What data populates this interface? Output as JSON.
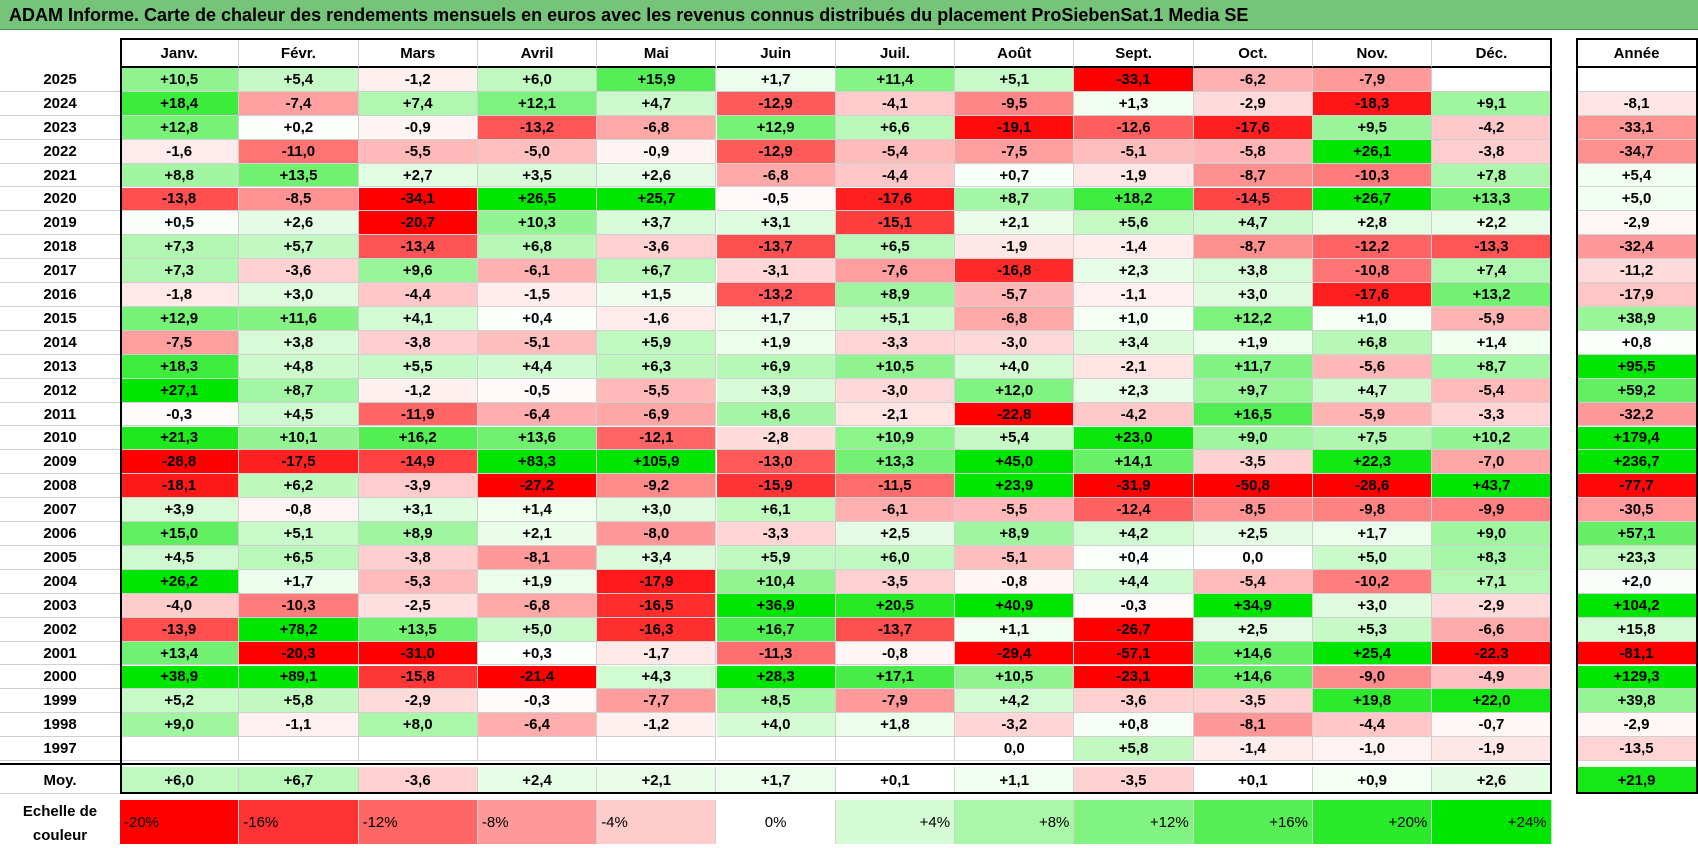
{
  "title": "ADAM Informe. Carte de chaleur des rendements mensuels en euros avec les revenus connus distribués du placement ProSiebenSat.1 Media SE",
  "chart_data": {
    "type": "heatmap",
    "title": "ADAM Informe. Carte de chaleur des rendements mensuels en euros avec les revenus connus distribués du placement ProSiebenSat.1 Media SE",
    "columns": [
      "Janv.",
      "Févr.",
      "Mars",
      "Avril",
      "Mai",
      "Juin",
      "Juil.",
      "Août",
      "Sept.",
      "Oct.",
      "Nov.",
      "Déc."
    ],
    "annual_header": "Année",
    "rows": [
      {
        "year": "2025",
        "months": [
          "+10,5",
          "+5,4",
          "-1,2",
          "+6,0",
          "+15,9",
          "+1,7",
          "+11,4",
          "+5,1",
          "-33,1",
          "-6,2",
          "-7,9",
          ""
        ],
        "annual": ""
      },
      {
        "year": "2024",
        "months": [
          "+18,4",
          "-7,4",
          "+7,4",
          "+12,1",
          "+4,7",
          "-12,9",
          "-4,1",
          "-9,5",
          "+1,3",
          "-2,9",
          "-18,3",
          "+9,1"
        ],
        "annual": "-8,1"
      },
      {
        "year": "2023",
        "months": [
          "+12,8",
          "+0,2",
          "-0,9",
          "-13,2",
          "-6,8",
          "+12,9",
          "+6,6",
          "-19,1",
          "-12,6",
          "-17,6",
          "+9,5",
          "-4,2"
        ],
        "annual": "-33,1"
      },
      {
        "year": "2022",
        "months": [
          "-1,6",
          "-11,0",
          "-5,5",
          "-5,0",
          "-0,9",
          "-12,9",
          "-5,4",
          "-7,5",
          "-5,1",
          "-5,8",
          "+26,1",
          "-3,8"
        ],
        "annual": "-34,7"
      },
      {
        "year": "2021",
        "months": [
          "+8,8",
          "+13,5",
          "+2,7",
          "+3,5",
          "+2,6",
          "-6,8",
          "-4,4",
          "+0,7",
          "-1,9",
          "-8,7",
          "-10,3",
          "+7,8"
        ],
        "annual": "+5,4"
      },
      {
        "year": "2020",
        "months": [
          "-13,8",
          "-8,5",
          "-34,1",
          "+26,5",
          "+25,7",
          "-0,5",
          "-17,6",
          "+8,7",
          "+18,2",
          "-14,5",
          "+26,7",
          "+13,3"
        ],
        "annual": "+5,0"
      },
      {
        "year": "2019",
        "months": [
          "+0,5",
          "+2,6",
          "-20,7",
          "+10,3",
          "+3,7",
          "+3,1",
          "-15,1",
          "+2,1",
          "+5,6",
          "+4,7",
          "+2,8",
          "+2,2"
        ],
        "annual": "-2,9"
      },
      {
        "year": "2018",
        "months": [
          "+7,3",
          "+5,7",
          "-13,4",
          "+6,8",
          "-3,6",
          "-13,7",
          "+6,5",
          "-1,9",
          "-1,4",
          "-8,7",
          "-12,2",
          "-13,3"
        ],
        "annual": "-32,4"
      },
      {
        "year": "2017",
        "months": [
          "+7,3",
          "-3,6",
          "+9,6",
          "-6,1",
          "+6,7",
          "-3,1",
          "-7,6",
          "-16,8",
          "+2,3",
          "+3,8",
          "-10,8",
          "+7,4"
        ],
        "annual": "-11,2"
      },
      {
        "year": "2016",
        "months": [
          "-1,8",
          "+3,0",
          "-4,4",
          "-1,5",
          "+1,5",
          "-13,2",
          "+8,9",
          "-5,7",
          "-1,1",
          "+3,0",
          "-17,6",
          "+13,2"
        ],
        "annual": "-17,9"
      },
      {
        "year": "2015",
        "months": [
          "+12,9",
          "+11,6",
          "+4,1",
          "+0,4",
          "-1,6",
          "+1,7",
          "+5,1",
          "-6,8",
          "+1,0",
          "+12,2",
          "+1,0",
          "-5,9"
        ],
        "annual": "+38,9"
      },
      {
        "year": "2014",
        "months": [
          "-7,5",
          "+3,8",
          "-3,8",
          "-5,1",
          "+5,9",
          "+1,9",
          "-3,3",
          "-3,0",
          "+3,4",
          "+1,9",
          "+6,8",
          "+1,4"
        ],
        "annual": "+0,8"
      },
      {
        "year": "2013",
        "months": [
          "+18,3",
          "+4,8",
          "+5,5",
          "+4,4",
          "+6,3",
          "+6,9",
          "+10,5",
          "+4,0",
          "-2,1",
          "+11,7",
          "-5,6",
          "+8,7"
        ],
        "annual": "+95,5"
      },
      {
        "year": "2012",
        "months": [
          "+27,1",
          "+8,7",
          "-1,2",
          "-0,5",
          "-5,5",
          "+3,9",
          "-3,0",
          "+12,0",
          "+2,3",
          "+9,7",
          "+4,7",
          "-5,4"
        ],
        "annual": "+59,2"
      },
      {
        "year": "2011",
        "months": [
          "-0,3",
          "+4,5",
          "-11,9",
          "-6,4",
          "-6,9",
          "+8,6",
          "-2,1",
          "-22,8",
          "-4,2",
          "+16,5",
          "-5,9",
          "-3,3"
        ],
        "annual": "-32,2"
      },
      {
        "year": "2010",
        "months": [
          "+21,3",
          "+10,1",
          "+16,2",
          "+13,6",
          "-12,1",
          "-2,8",
          "+10,9",
          "+5,4",
          "+23,0",
          "+9,0",
          "+7,5",
          "+10,2"
        ],
        "annual": "+179,4"
      },
      {
        "year": "2009",
        "months": [
          "-28,8",
          "-17,5",
          "-14,9",
          "+83,3",
          "+105,9",
          "-13,0",
          "+13,3",
          "+45,0",
          "+14,1",
          "-3,5",
          "+22,3",
          "-7,0"
        ],
        "annual": "+236,7"
      },
      {
        "year": "2008",
        "months": [
          "-18,1",
          "+6,2",
          "-3,9",
          "-27,2",
          "-9,2",
          "-15,9",
          "-11,5",
          "+23,9",
          "-31,9",
          "-50,8",
          "-28,6",
          "+43,7"
        ],
        "annual": "-77,7"
      },
      {
        "year": "2007",
        "months": [
          "+3,9",
          "-0,8",
          "+3,1",
          "+1,4",
          "+3,0",
          "+6,1",
          "-6,1",
          "-5,5",
          "-12,4",
          "-8,5",
          "-9,8",
          "-9,9"
        ],
        "annual": "-30,5"
      },
      {
        "year": "2006",
        "months": [
          "+15,0",
          "+5,1",
          "+8,9",
          "+2,1",
          "-8,0",
          "-3,3",
          "+2,5",
          "+8,9",
          "+4,2",
          "+2,5",
          "+1,7",
          "+9,0"
        ],
        "annual": "+57,1"
      },
      {
        "year": "2005",
        "months": [
          "+4,5",
          "+6,5",
          "-3,8",
          "-8,1",
          "+3,4",
          "+5,9",
          "+6,0",
          "-5,1",
          "+0,4",
          "0,0",
          "+5,0",
          "+8,3"
        ],
        "annual": "+23,3"
      },
      {
        "year": "2004",
        "months": [
          "+26,2",
          "+1,7",
          "-5,3",
          "+1,9",
          "-17,9",
          "+10,4",
          "-3,5",
          "-0,8",
          "+4,4",
          "-5,4",
          "-10,2",
          "+7,1"
        ],
        "annual": "+2,0"
      },
      {
        "year": "2003",
        "months": [
          "-4,0",
          "-10,3",
          "-2,5",
          "-6,8",
          "-16,5",
          "+36,9",
          "+20,5",
          "+40,9",
          "-0,3",
          "+34,9",
          "+3,0",
          "-2,9"
        ],
        "annual": "+104,2"
      },
      {
        "year": "2002",
        "months": [
          "-13,9",
          "+78,2",
          "+13,5",
          "+5,0",
          "-16,3",
          "+16,7",
          "-13,7",
          "+1,1",
          "-26,7",
          "+2,5",
          "+5,3",
          "-6,6"
        ],
        "annual": "+15,8"
      },
      {
        "year": "2001",
        "months": [
          "+13,4",
          "-20,3",
          "-31,0",
          "+0,3",
          "-1,7",
          "-11,3",
          "-0,8",
          "-29,4",
          "-57,1",
          "+14,6",
          "+25,4",
          "-22,3"
        ],
        "annual": "-81,1"
      },
      {
        "year": "2000",
        "months": [
          "+38,9",
          "+89,1",
          "-15,8",
          "-21,4",
          "+4,3",
          "+28,3",
          "+17,1",
          "+10,5",
          "-23,1",
          "+14,6",
          "-9,0",
          "-4,9"
        ],
        "annual": "+129,3"
      },
      {
        "year": "1999",
        "months": [
          "+5,2",
          "+5,8",
          "-2,9",
          "-0,3",
          "-7,7",
          "+8,5",
          "-7,9",
          "+4,2",
          "-3,6",
          "-3,5",
          "+19,8",
          "+22,0"
        ],
        "annual": "+39,8"
      },
      {
        "year": "1998",
        "months": [
          "+9,0",
          "-1,1",
          "+8,0",
          "-6,4",
          "-1,2",
          "+4,0",
          "+1,8",
          "-3,2",
          "+0,8",
          "-8,1",
          "-4,4",
          "-0,7"
        ],
        "annual": "-2,9"
      },
      {
        "year": "1997",
        "months": [
          "",
          "",
          "",
          "",
          "",
          "",
          "",
          "0,0",
          "+5,8",
          "-1,4",
          "-1,0",
          "-1,9"
        ],
        "annual": "-13,5"
      }
    ],
    "average": {
      "label": "Moy.",
      "months": [
        "+6,0",
        "+6,7",
        "-3,6",
        "+2,4",
        "+2,1",
        "+1,7",
        "+0,1",
        "+1,1",
        "-3,5",
        "+0,1",
        "+0,9",
        "+2,6"
      ],
      "annual": "+21,9"
    },
    "scale": {
      "label": "Echelle de couleur",
      "steps": [
        {
          "text": "-20%",
          "value": -20,
          "align": "left"
        },
        {
          "text": "-16%",
          "value": -16,
          "align": "left"
        },
        {
          "text": "-12%",
          "value": -12,
          "align": "left"
        },
        {
          "text": "-8%",
          "value": -8,
          "align": "left"
        },
        {
          "text": "-4%",
          "value": -4,
          "align": "left"
        },
        {
          "text": "0%",
          "value": 0,
          "align": "center"
        },
        {
          "text": "+4%",
          "value": 4,
          "align": "right"
        },
        {
          "text": "+8%",
          "value": 8,
          "align": "right"
        },
        {
          "text": "+12%",
          "value": 12,
          "align": "right"
        },
        {
          "text": "+16%",
          "value": 16,
          "align": "right"
        },
        {
          "text": "+20%",
          "value": 20,
          "align": "right"
        },
        {
          "text": "+24%",
          "value": 24,
          "align": "right"
        }
      ]
    },
    "colors": {
      "title_bg": "#76c47a",
      "neg_max": "#ff0000",
      "pos_max": "#00e600",
      "neutral": "#ffffff"
    }
  }
}
